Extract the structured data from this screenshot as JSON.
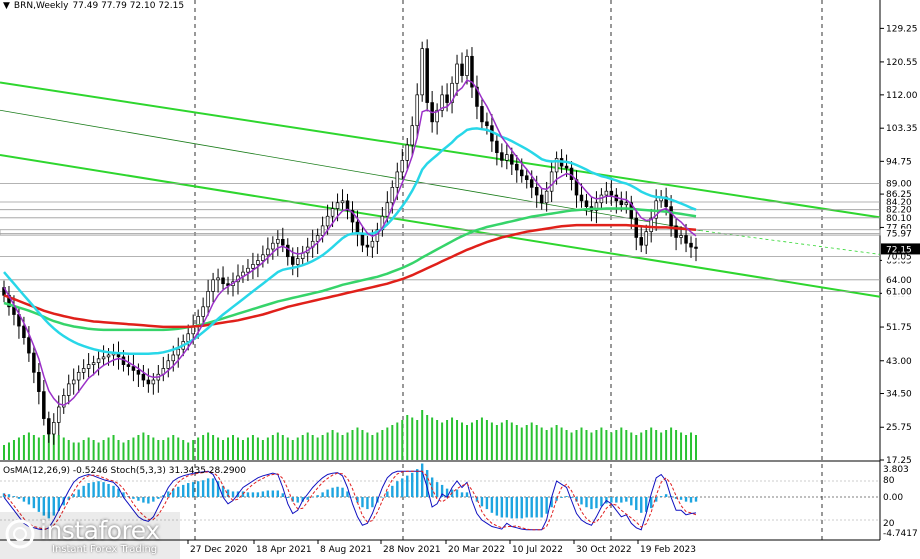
{
  "header": {
    "symbol": "BRN,Weekly",
    "ohlc": "77.49 77.79 72.10 72.15"
  },
  "oscillator_header": "OsMA(12,26,9) -0.5246  Stoch(5,3,3) 31.3435 28.2900",
  "logo": {
    "name": "instaforex",
    "tagline": "Instant Forex Trading"
  },
  "colors": {
    "ma_fast": "#9b30c8",
    "ma_mid": "#28d7e8",
    "ma_slow_green": "#36d46a",
    "ma_slow_red": "#e0201a",
    "channel": "#2ed62e",
    "candle": "#000000",
    "volume": "#29c231",
    "osma": "#1ea5e0",
    "stoch_main": "#1010c0",
    "stoch_signal": "#e02020",
    "last_price_bg": "#000000"
  },
  "chart_data": {
    "type": "candlestick",
    "title": "BRN,Weekly",
    "x_ticks": [
      "27 Dec 2020",
      "18 Apr 2021",
      "8 Aug 2021",
      "28 Nov 2021",
      "20 Mar 2022",
      "10 Jul 2022",
      "30 Oct 2022",
      "19 Feb 2023"
    ],
    "y_ticks": [
      "129.25",
      "120.55",
      "112.00",
      "103.35",
      "94.75",
      "86.25",
      "77.60",
      "69.05",
      "60.50",
      "51.75",
      "43.00",
      "34.50",
      "25.75",
      "17.25"
    ],
    "level_labels": [
      "89.00",
      "84.20",
      "82.20",
      "80.10",
      "75.97",
      "70.05",
      "64.00",
      "61.00"
    ],
    "last_price": "72.15",
    "ylim": [
      17.25,
      135
    ],
    "closes": [
      60.0,
      57.0,
      55.0,
      52.0,
      49.0,
      45.0,
      40.0,
      35.0,
      28.0,
      24.0,
      27.0,
      31.0,
      34.0,
      37.0,
      38.0,
      40.0,
      41.0,
      42.0,
      42.5,
      43.5,
      44.0,
      44.5,
      45.0,
      44.0,
      42.0,
      41.5,
      40.5,
      39.5,
      38.0,
      37.0,
      38.0,
      39.5,
      41.0,
      43.0,
      44.5,
      46.0,
      48.0,
      50.0,
      52.0,
      54.5,
      57.0,
      61.0,
      64.0,
      64.5,
      63.0,
      62.5,
      63.5,
      65.0,
      66.0,
      67.0,
      68.0,
      69.0,
      70.5,
      72.0,
      73.5,
      74.5,
      73.0,
      70.0,
      68.0,
      69.5,
      71.0,
      72.5,
      74.0,
      75.5,
      78.0,
      80.5,
      82.5,
      84.0,
      84.5,
      82.0,
      79.0,
      76.0,
      73.0,
      72.5,
      74.0,
      77.0,
      80.5,
      84.0,
      88.0,
      92.0,
      95.0,
      99.0,
      104.0,
      112.0,
      124.0,
      110.0,
      105.0,
      108.0,
      112.0,
      110.0,
      115.0,
      120.0,
      117.0,
      122.0,
      114.0,
      109.0,
      105.0,
      104.0,
      100.0,
      97.0,
      95.0,
      96.5,
      94.0,
      92.5,
      91.0,
      90.0,
      88.0,
      86.0,
      84.0,
      87.0,
      92.0,
      95.5,
      93.5,
      93.0,
      90.0,
      86.0,
      84.5,
      83.0,
      82.0,
      84.0,
      86.0,
      87.0,
      86.0,
      84.5,
      83.5,
      84.0,
      80.0,
      75.0,
      73.0,
      76.5,
      80.0,
      84.5,
      85.5,
      83.0,
      78.0,
      75.0,
      75.5,
      73.5,
      72.5,
      72.15
    ],
    "ma_fast_values": [
      62.0,
      59.8,
      57.5,
      55.2,
      52.8,
      50.0,
      46.8,
      43.5,
      39.0,
      35.2,
      33.2,
      31.8,
      31.5,
      32.2,
      33.4,
      35.0,
      36.8,
      38.5,
      39.5,
      40.8,
      41.8,
      42.5,
      43.2,
      43.6,
      43.3,
      42.6,
      41.8,
      41.0,
      40.0,
      39.1,
      38.7,
      38.8,
      39.4,
      40.5,
      41.7,
      43.1,
      44.7,
      46.5,
      48.4,
      50.4,
      52.6,
      55.1,
      57.9,
      60.0,
      61.4,
      62.3,
      63.1,
      64.0,
      64.8,
      65.6,
      66.5,
      67.4,
      68.5,
      69.8,
      71.1,
      72.3,
      72.7,
      72.1,
      71.1,
      70.7,
      70.9,
      71.6,
      72.6,
      73.6,
      75.1,
      76.9,
      78.7,
      80.5,
      81.9,
      82.3,
      81.5,
      79.9,
      77.9,
      76.1,
      75.3,
      75.9,
      77.5,
      79.9,
      82.9,
      86.1,
      89.2,
      92.5,
      96.1,
      100.9,
      107.6,
      108.1,
      107.4,
      107.6,
      108.6,
      108.9,
      110.4,
      112.8,
      113.8,
      115.8,
      115.3,
      113.6,
      111.1,
      109.0,
      106.4,
      103.6,
      101.0,
      99.3,
      97.6,
      95.9,
      94.2,
      92.7,
      91.0,
      89.3,
      87.7,
      87.5,
      88.6,
      90.1,
      90.9,
      91.6,
      91.2,
      89.8,
      88.4,
      86.9,
      85.5,
      85.0,
      85.2,
      85.7,
      85.7,
      85.4,
      85.0,
      84.8,
      83.7,
      81.9,
      80.1,
      79.4,
      79.6,
      80.8,
      82.1,
      82.5,
      81.4,
      80.0,
      79.0,
      77.6,
      76.4,
      75.4
    ],
    "ma_mid_values": [
      66.0,
      64.5,
      63.0,
      61.5,
      60.0,
      58.5,
      57.0,
      55.5,
      54.0,
      52.6,
      51.4,
      50.3,
      49.4,
      48.6,
      47.9,
      47.3,
      46.8,
      46.4,
      46.0,
      45.7,
      45.4,
      45.2,
      45.1,
      45.0,
      44.9,
      44.8,
      44.8,
      44.8,
      44.8,
      44.8,
      44.9,
      45.0,
      45.2,
      45.5,
      45.9,
      46.4,
      47.0,
      47.7,
      48.5,
      49.4,
      50.4,
      51.5,
      52.7,
      53.9,
      55.0,
      56.0,
      57.0,
      58.0,
      59.0,
      60.0,
      61.0,
      62.0,
      63.0,
      64.0,
      65.0,
      66.0,
      66.6,
      66.9,
      67.1,
      67.4,
      67.8,
      68.3,
      68.9,
      69.6,
      70.4,
      71.4,
      72.5,
      73.7,
      74.8,
      75.6,
      76.0,
      76.1,
      76.0,
      75.9,
      76.0,
      76.5,
      77.3,
      78.4,
      79.8,
      81.4,
      83.1,
      85.0,
      87.1,
      89.6,
      92.6,
      94.2,
      95.3,
      96.4,
      97.6,
      98.6,
      99.7,
      101.0,
      101.9,
      102.9,
      103.2,
      103.3,
      103.1,
      102.9,
      102.4,
      101.8,
      101.1,
      100.6,
      100.0,
      99.3,
      98.6,
      97.9,
      97.1,
      96.2,
      95.3,
      94.9,
      94.7,
      94.8,
      94.7,
      94.6,
      94.3,
      93.8,
      93.2,
      92.6,
      91.9,
      91.4,
      90.9,
      90.6,
      90.2,
      89.8,
      89.3,
      89.0,
      88.4,
      87.7,
      86.9,
      86.3,
      85.8,
      85.5,
      85.4,
      85.2,
      84.8,
      84.3,
      83.8,
      83.3,
      82.7,
      82.2
    ],
    "ma_slow_green_values": [
      58.0,
      57.6,
      57.2,
      56.8,
      56.4,
      56.0,
      55.5,
      55.0,
      54.4,
      53.8,
      53.3,
      52.9,
      52.5,
      52.2,
      51.9,
      51.7,
      51.5,
      51.3,
      51.2,
      51.1,
      51.0,
      51.0,
      51.0,
      51.0,
      51.0,
      51.0,
      51.0,
      51.0,
      51.0,
      51.0,
      51.0,
      51.0,
      51.0,
      51.1,
      51.2,
      51.3,
      51.5,
      51.7,
      51.9,
      52.2,
      52.5,
      52.8,
      53.2,
      53.6,
      54.0,
      54.4,
      54.8,
      55.2,
      55.6,
      56.0,
      56.4,
      56.8,
      57.2,
      57.6,
      58.0,
      58.4,
      58.7,
      59.0,
      59.3,
      59.6,
      59.9,
      60.2,
      60.5,
      60.8,
      61.1,
      61.5,
      61.9,
      62.3,
      62.7,
      63.0,
      63.3,
      63.6,
      63.9,
      64.2,
      64.5,
      64.8,
      65.2,
      65.6,
      66.1,
      66.6,
      67.1,
      67.7,
      68.3,
      69.0,
      69.8,
      70.5,
      71.2,
      71.9,
      72.6,
      73.3,
      74.0,
      74.7,
      75.3,
      75.9,
      76.4,
      76.9,
      77.3,
      77.7,
      78.0,
      78.3,
      78.6,
      78.9,
      79.2,
      79.5,
      79.8,
      80.1,
      80.4,
      80.6,
      80.8,
      81.0,
      81.2,
      81.4,
      81.6,
      81.8,
      82.0,
      82.1,
      82.2,
      82.3,
      82.4,
      82.4,
      82.4,
      82.5,
      82.5,
      82.5,
      82.5,
      82.5,
      82.4,
      82.3,
      82.2,
      82.1,
      82.0,
      81.9,
      81.8,
      81.7,
      81.5,
      81.3,
      81.1,
      80.9,
      80.7,
      80.5
    ],
    "ma_slow_red_values": [
      60.0,
      59.5,
      59.0,
      58.5,
      58.0,
      57.5,
      57.0,
      56.5,
      56.0,
      55.6,
      55.2,
      54.9,
      54.6,
      54.3,
      54.0,
      53.8,
      53.6,
      53.4,
      53.2,
      53.1,
      53.0,
      52.9,
      52.8,
      52.7,
      52.6,
      52.5,
      52.4,
      52.3,
      52.2,
      52.1,
      52.0,
      51.9,
      51.8,
      51.8,
      51.8,
      51.8,
      51.8,
      51.8,
      51.9,
      52.0,
      52.1,
      52.3,
      52.5,
      52.7,
      52.9,
      53.1,
      53.3,
      53.5,
      53.8,
      54.1,
      54.4,
      54.7,
      55.0,
      55.4,
      55.8,
      56.2,
      56.6,
      57.0,
      57.3,
      57.6,
      57.9,
      58.2,
      58.5,
      58.8,
      59.1,
      59.4,
      59.7,
      60.0,
      60.3,
      60.6,
      60.9,
      61.2,
      61.5,
      61.8,
      62.1,
      62.4,
      62.7,
      63.0,
      63.4,
      63.8,
      64.2,
      64.7,
      65.2,
      65.8,
      66.4,
      67.0,
      67.6,
      68.2,
      68.8,
      69.4,
      70.0,
      70.6,
      71.2,
      71.8,
      72.3,
      72.8,
      73.3,
      73.8,
      74.2,
      74.6,
      75.0,
      75.3,
      75.6,
      75.9,
      76.2,
      76.5,
      76.7,
      76.9,
      77.1,
      77.3,
      77.5,
      77.7,
      77.9,
      78.0,
      78.1,
      78.2,
      78.2,
      78.2,
      78.2,
      78.2,
      78.2,
      78.2,
      78.2,
      78.2,
      78.2,
      78.2,
      78.1,
      78.0,
      77.9,
      77.8,
      77.7,
      77.6,
      77.6,
      77.6,
      77.5,
      77.4,
      77.3,
      77.2,
      77.1,
      77.0
    ],
    "volumes": [
      0.3,
      0.35,
      0.4,
      0.45,
      0.5,
      0.55,
      0.5,
      0.45,
      0.5,
      0.6,
      0.55,
      0.5,
      0.45,
      0.4,
      0.35,
      0.35,
      0.4,
      0.45,
      0.4,
      0.35,
      0.4,
      0.45,
      0.5,
      0.4,
      0.35,
      0.4,
      0.45,
      0.5,
      0.55,
      0.5,
      0.45,
      0.4,
      0.4,
      0.45,
      0.5,
      0.45,
      0.4,
      0.35,
      0.4,
      0.45,
      0.5,
      0.55,
      0.5,
      0.45,
      0.4,
      0.45,
      0.5,
      0.45,
      0.4,
      0.45,
      0.5,
      0.45,
      0.4,
      0.45,
      0.5,
      0.55,
      0.5,
      0.45,
      0.4,
      0.45,
      0.5,
      0.55,
      0.5,
      0.45,
      0.5,
      0.55,
      0.6,
      0.55,
      0.5,
      0.55,
      0.6,
      0.65,
      0.6,
      0.55,
      0.5,
      0.55,
      0.6,
      0.65,
      0.7,
      0.75,
      0.8,
      0.9,
      0.85,
      0.8,
      1.0,
      0.9,
      0.85,
      0.8,
      0.75,
      0.8,
      0.85,
      0.8,
      0.75,
      0.7,
      0.75,
      0.8,
      0.85,
      0.8,
      0.75,
      0.7,
      0.75,
      0.8,
      0.75,
      0.7,
      0.65,
      0.7,
      0.75,
      0.7,
      0.65,
      0.6,
      0.65,
      0.7,
      0.65,
      0.6,
      0.55,
      0.6,
      0.65,
      0.6,
      0.55,
      0.6,
      0.65,
      0.6,
      0.55,
      0.6,
      0.65,
      0.6,
      0.55,
      0.5,
      0.55,
      0.6,
      0.65,
      0.6,
      0.55,
      0.6,
      0.65,
      0.6,
      0.55,
      0.5,
      0.55,
      0.5
    ],
    "osc_ticks": [
      "3.803",
      "80",
      "0.00",
      "20",
      "-4.7417"
    ],
    "osma_values": [
      0.4,
      0.3,
      0.1,
      -0.2,
      -0.5,
      -0.8,
      -1.2,
      -1.6,
      -2.0,
      -2.3,
      -2.0,
      -1.5,
      -0.9,
      -0.3,
      0.3,
      0.8,
      1.2,
      1.5,
      1.6,
      1.7,
      1.6,
      1.4,
      1.2,
      0.9,
      0.5,
      0.1,
      -0.2,
      -0.4,
      -0.6,
      -0.7,
      -0.5,
      -0.2,
      0.2,
      0.6,
      0.9,
      1.1,
      1.3,
      1.5,
      1.6,
      1.7,
      1.8,
      2.0,
      2.0,
      1.7,
      1.2,
      0.8,
      0.6,
      0.6,
      0.6,
      0.5,
      0.5,
      0.5,
      0.6,
      0.7,
      0.7,
      0.7,
      0.4,
      -0.1,
      -0.5,
      -0.6,
      -0.5,
      -0.3,
      0.0,
      0.2,
      0.5,
      0.8,
      1.0,
      1.1,
      1.0,
      0.6,
      0.0,
      -0.6,
      -1.1,
      -1.3,
      -1.1,
      -0.6,
      0.0,
      0.6,
      1.2,
      1.7,
      2.0,
      2.3,
      2.6,
      3.0,
      3.6,
      2.9,
      2.1,
      1.6,
      1.3,
      0.9,
      0.8,
      0.8,
      0.5,
      0.5,
      0.0,
      -0.5,
      -1.0,
      -1.3,
      -1.7,
      -2.0,
      -2.2,
      -2.2,
      -2.3,
      -2.3,
      -2.3,
      -2.2,
      -2.2,
      -2.2,
      -2.2,
      -1.8,
      -1.1,
      -0.4,
      -0.1,
      0.1,
      -0.1,
      -0.5,
      -0.8,
      -1.1,
      -1.3,
      -1.2,
      -1.0,
      -0.7,
      -0.6,
      -0.6,
      -0.6,
      -0.5,
      -0.9,
      -1.4,
      -1.7,
      -1.6,
      -1.2,
      -0.5,
      0.1,
      0.3,
      0.1,
      -0.2,
      -0.3,
      -0.5,
      -0.6,
      -0.5
    ],
    "stoch_main_values": [
      55,
      45,
      35,
      25,
      15,
      10,
      8,
      6,
      5,
      8,
      20,
      35,
      50,
      65,
      78,
      85,
      88,
      90,
      88,
      85,
      82,
      80,
      78,
      70,
      55,
      45,
      35,
      25,
      20,
      18,
      25,
      40,
      55,
      70,
      80,
      85,
      88,
      90,
      92,
      93,
      94,
      95,
      90,
      75,
      55,
      45,
      50,
      60,
      70,
      75,
      80,
      85,
      88,
      90,
      92,
      90,
      70,
      45,
      30,
      35,
      50,
      60,
      70,
      78,
      85,
      90,
      92,
      93,
      88,
      70,
      45,
      25,
      12,
      15,
      30,
      50,
      70,
      85,
      92,
      95,
      95,
      95,
      95,
      95,
      95,
      70,
      40,
      45,
      60,
      55,
      70,
      80,
      70,
      78,
      50,
      30,
      20,
      15,
      10,
      8,
      6,
      15,
      10,
      8,
      6,
      5,
      5,
      5,
      5,
      20,
      55,
      80,
      75,
      70,
      50,
      30,
      20,
      15,
      12,
      25,
      40,
      50,
      45,
      35,
      25,
      28,
      15,
      8,
      5,
      30,
      60,
      85,
      90,
      80,
      55,
      35,
      35,
      28,
      30,
      31
    ],
    "stoch_signal_values": [
      60,
      52,
      42,
      32,
      22,
      14,
      10,
      8,
      6,
      7,
      12,
      22,
      36,
      50,
      64,
      76,
      84,
      88,
      89,
      88,
      85,
      82,
      80,
      76,
      68,
      57,
      45,
      35,
      27,
      21,
      21,
      28,
      40,
      55,
      68,
      78,
      84,
      88,
      90,
      92,
      93,
      94,
      93,
      87,
      73,
      58,
      50,
      52,
      60,
      68,
      75,
      80,
      84,
      88,
      90,
      91,
      84,
      68,
      48,
      37,
      38,
      48,
      60,
      69,
      78,
      84,
      89,
      92,
      91,
      84,
      68,
      47,
      27,
      17,
      19,
      32,
      50,
      68,
      82,
      91,
      94,
      95,
      95,
      95,
      95,
      87,
      68,
      52,
      48,
      53,
      62,
      68,
      73,
      76,
      66,
      53,
      33,
      22,
      15,
      11,
      8,
      10,
      10,
      11,
      8,
      6,
      5,
      5,
      5,
      10,
      27,
      52,
      70,
      75,
      65,
      50,
      33,
      22,
      16,
      17,
      26,
      38,
      45,
      43,
      35,
      29,
      23,
      17,
      9,
      14,
      32,
      58,
      78,
      85,
      75,
      57,
      42,
      33,
      31,
      28
    ]
  }
}
